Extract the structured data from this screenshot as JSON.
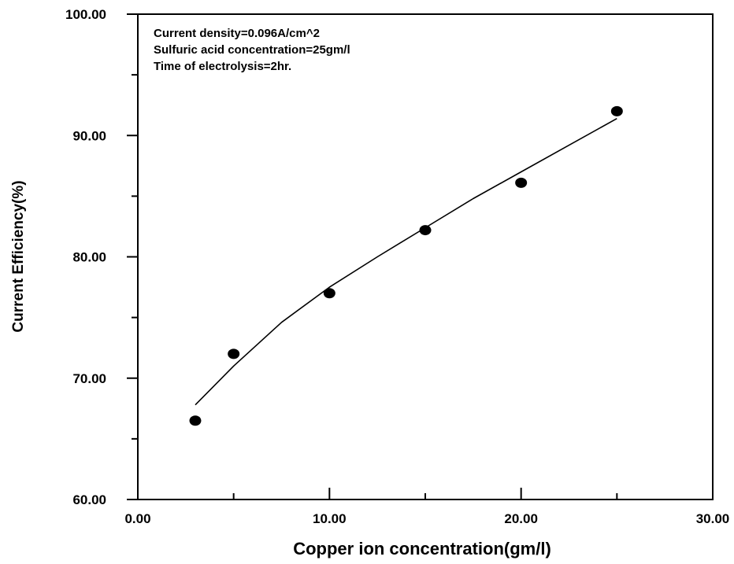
{
  "chart_data": {
    "type": "scatter",
    "title": "",
    "xlabel": "Copper ion concentration(gm/l)",
    "ylabel": "Current Efficiency(%)",
    "xlim": [
      0,
      30
    ],
    "ylim": [
      60,
      100
    ],
    "x_tick_labels": [
      "0.00",
      "10.00",
      "20.00",
      "30.00"
    ],
    "y_tick_labels": [
      "60.00",
      "70.00",
      "80.00",
      "90.00",
      "100.00"
    ],
    "x_major_ticks": [
      0,
      10,
      20,
      30
    ],
    "x_minor_ticks": [
      5,
      15,
      25
    ],
    "y_major_ticks": [
      60,
      70,
      80,
      90,
      100
    ],
    "y_minor_ticks": [
      65,
      75,
      85,
      95
    ],
    "grid": false,
    "legend": "none",
    "annotations": [
      "Current density=0.096A/cm^2",
      "Sulfuric acid concentration=25gm/l",
      "Time of electrolysis=2hr."
    ],
    "series": [
      {
        "type": "scatter",
        "marker": "filled-circle",
        "x": [
          3,
          5,
          10,
          15,
          20,
          25
        ],
        "y": [
          66.5,
          72.0,
          77.0,
          82.2,
          86.1,
          92.0
        ]
      },
      {
        "type": "line",
        "x": [
          3,
          5,
          7.5,
          10,
          12.5,
          15,
          17.5,
          20,
          22.5,
          25
        ],
        "y": [
          67.8,
          71.0,
          74.6,
          77.5,
          80.0,
          82.4,
          84.8,
          87.0,
          89.2,
          91.4
        ]
      }
    ],
    "colors": {
      "axis": "#000000",
      "marker": "#000000",
      "line": "#000000"
    }
  }
}
